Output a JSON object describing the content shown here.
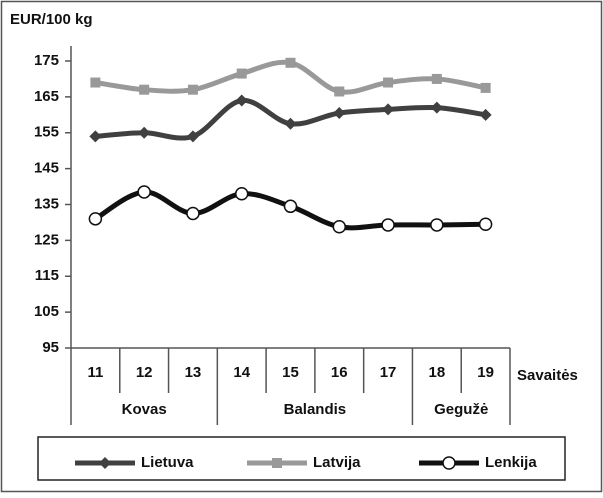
{
  "chart_data": {
    "type": "line",
    "y_axis_label": "EUR/100 kg",
    "x_axis_label": "Savaitės",
    "categories": [
      "11",
      "12",
      "13",
      "14",
      "15",
      "16",
      "17",
      "18",
      "19"
    ],
    "month_groups": [
      {
        "name": "Kovas",
        "span": 3
      },
      {
        "name": "Balandis",
        "span": 4
      },
      {
        "name": "Gegužė",
        "span": 2
      }
    ],
    "ylim": [
      95,
      175
    ],
    "yticks": [
      95,
      105,
      115,
      125,
      135,
      145,
      155,
      165,
      175
    ],
    "smooth": true,
    "series": [
      {
        "name": "Lietuva",
        "color": "#404040",
        "marker": "diamond",
        "values": [
          154,
          155,
          154,
          164,
          157.5,
          160.5,
          161.5,
          162,
          160
        ]
      },
      {
        "name": "Latvija",
        "color": "#999999",
        "marker": "square",
        "values": [
          169,
          167,
          167,
          171.5,
          174.5,
          166.5,
          169,
          170,
          167.5
        ]
      },
      {
        "name": "Lenkija",
        "color": "#111111",
        "marker": "circle",
        "values": [
          131,
          138.5,
          132.5,
          138,
          134.5,
          128.8,
          129.3,
          129.3,
          129.5
        ]
      }
    ]
  }
}
